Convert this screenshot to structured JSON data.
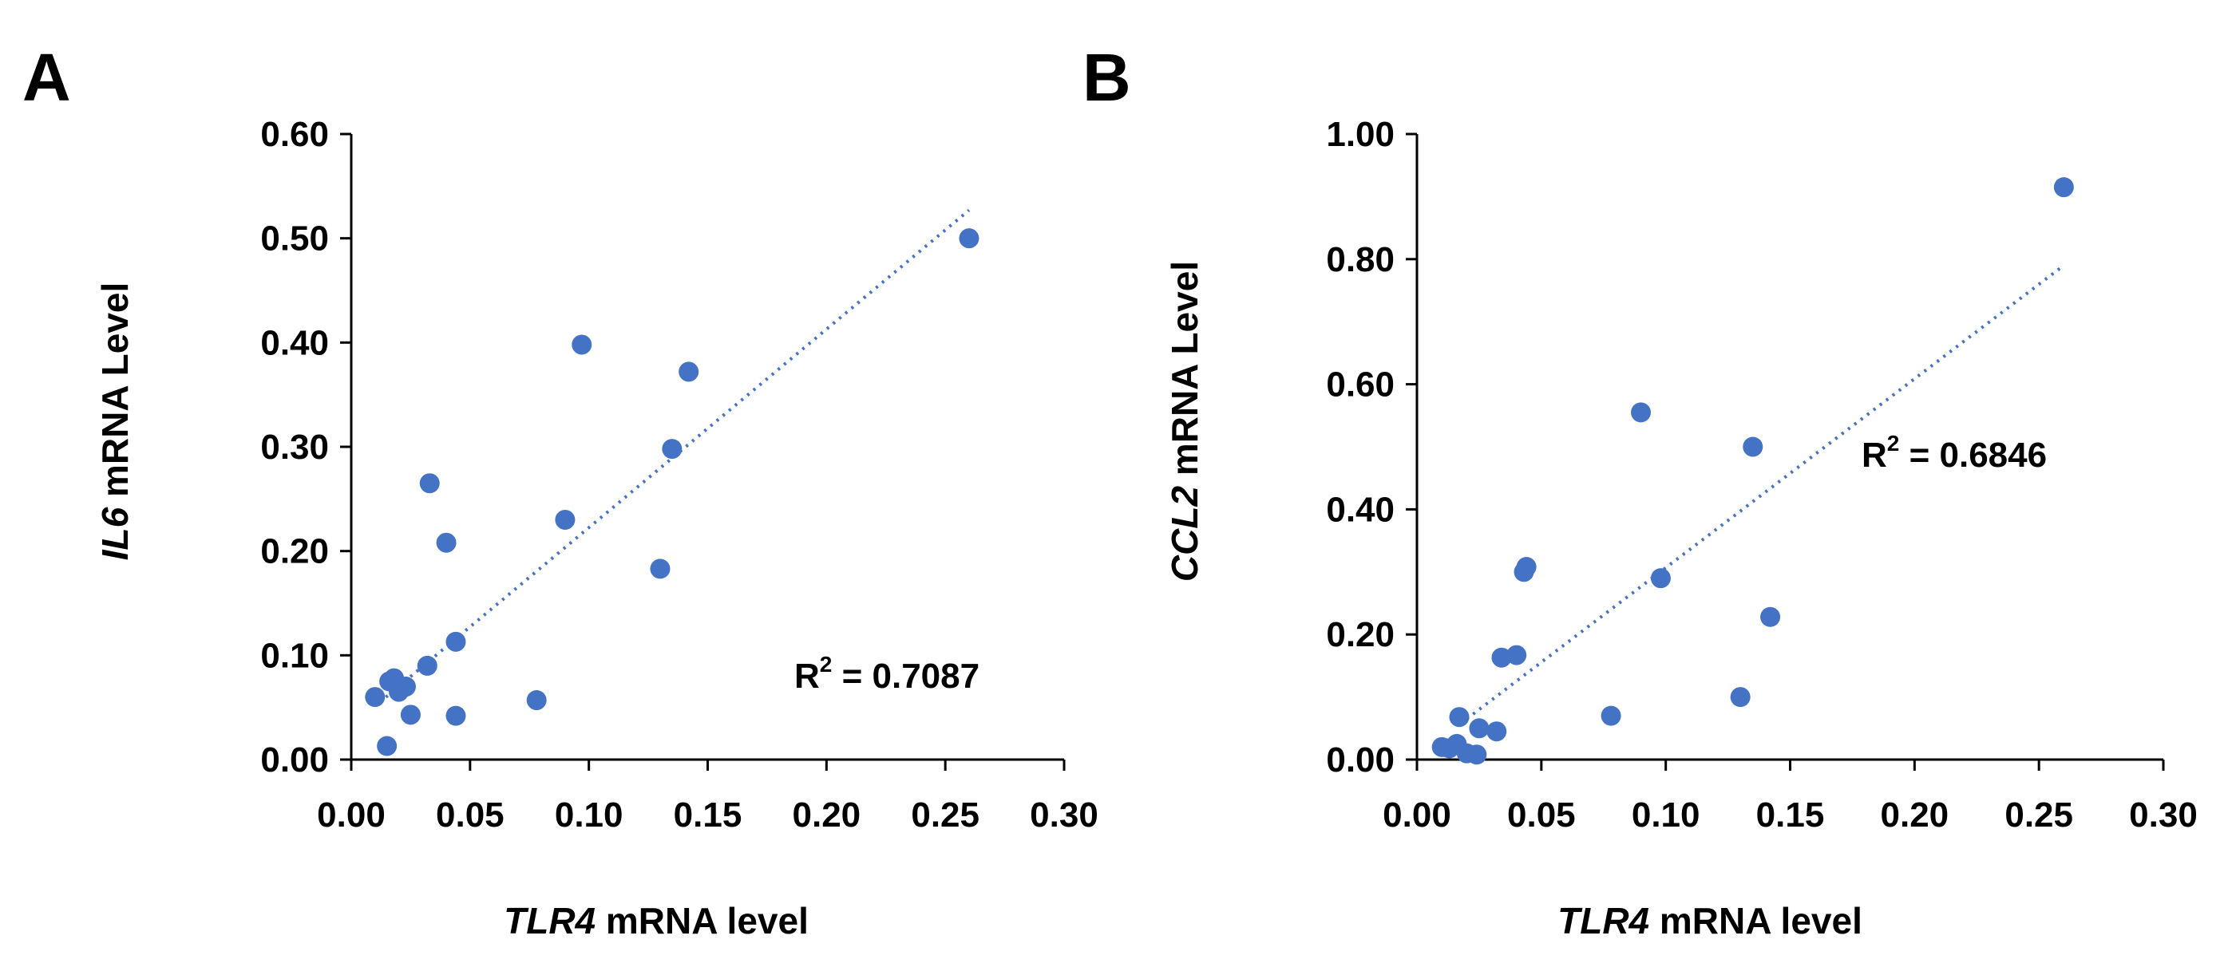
{
  "chart_data": [
    {
      "type": "scatter",
      "panel_label": "A",
      "xlabel_gene": "TLR4",
      "xlabel_rest": " mRNA level",
      "ylabel_gene": "IL6",
      "ylabel_rest": " mRNA Level",
      "xlim": [
        0,
        0.3
      ],
      "ylim": [
        0,
        0.6
      ],
      "x_ticks": [
        "0.00",
        "0.05",
        "0.10",
        "0.15",
        "0.20",
        "0.25",
        "0.30"
      ],
      "y_ticks": [
        "0.00",
        "0.10",
        "0.20",
        "0.30",
        "0.40",
        "0.50",
        "0.60"
      ],
      "r2_label": "R",
      "r2_sup": "2",
      "r2_value": " = 0.7087",
      "trendline": {
        "x": [
          0.012,
          0.26
        ],
        "y": [
          0.055,
          0.527
        ]
      },
      "color": "#4472c4",
      "points": [
        {
          "x": 0.26,
          "y": 0.5
        },
        {
          "x": 0.097,
          "y": 0.398
        },
        {
          "x": 0.142,
          "y": 0.372
        },
        {
          "x": 0.135,
          "y": 0.298
        },
        {
          "x": 0.033,
          "y": 0.265
        },
        {
          "x": 0.09,
          "y": 0.23
        },
        {
          "x": 0.04,
          "y": 0.208
        },
        {
          "x": 0.13,
          "y": 0.183
        },
        {
          "x": 0.044,
          "y": 0.113
        },
        {
          "x": 0.032,
          "y": 0.09
        },
        {
          "x": 0.018,
          "y": 0.078
        },
        {
          "x": 0.016,
          "y": 0.075
        },
        {
          "x": 0.023,
          "y": 0.07
        },
        {
          "x": 0.02,
          "y": 0.065
        },
        {
          "x": 0.01,
          "y": 0.06
        },
        {
          "x": 0.078,
          "y": 0.057
        },
        {
          "x": 0.025,
          "y": 0.043
        },
        {
          "x": 0.044,
          "y": 0.042
        },
        {
          "x": 0.015,
          "y": 0.013
        }
      ]
    },
    {
      "type": "scatter",
      "panel_label": "B",
      "xlabel_gene": "TLR4",
      "xlabel_rest": " mRNA level",
      "ylabel_gene": "CCL2",
      "ylabel_rest": " mRNA Level",
      "xlim": [
        0,
        0.3
      ],
      "ylim": [
        0,
        1.0
      ],
      "x_ticks": [
        "0.00",
        "0.05",
        "0.10",
        "0.15",
        "0.20",
        "0.25",
        "0.30"
      ],
      "y_ticks": [
        "0.00",
        "0.20",
        "0.40",
        "0.60",
        "0.80",
        "1.00"
      ],
      "r2_label": "R",
      "r2_sup": "2",
      "r2_value": " = 0.6846",
      "trendline": {
        "x": [
          0.02,
          0.26
        ],
        "y": [
          0.065,
          0.79
        ]
      },
      "color": "#4472c4",
      "points": [
        {
          "x": 0.26,
          "y": 0.915
        },
        {
          "x": 0.09,
          "y": 0.555
        },
        {
          "x": 0.135,
          "y": 0.5
        },
        {
          "x": 0.044,
          "y": 0.308
        },
        {
          "x": 0.043,
          "y": 0.3
        },
        {
          "x": 0.098,
          "y": 0.29
        },
        {
          "x": 0.142,
          "y": 0.228
        },
        {
          "x": 0.04,
          "y": 0.167
        },
        {
          "x": 0.034,
          "y": 0.163
        },
        {
          "x": 0.13,
          "y": 0.1
        },
        {
          "x": 0.078,
          "y": 0.07
        },
        {
          "x": 0.017,
          "y": 0.068
        },
        {
          "x": 0.025,
          "y": 0.05
        },
        {
          "x": 0.032,
          "y": 0.045
        },
        {
          "x": 0.01,
          "y": 0.02
        },
        {
          "x": 0.013,
          "y": 0.018
        },
        {
          "x": 0.016,
          "y": 0.025
        },
        {
          "x": 0.02,
          "y": 0.01
        },
        {
          "x": 0.024,
          "y": 0.008
        }
      ]
    }
  ]
}
